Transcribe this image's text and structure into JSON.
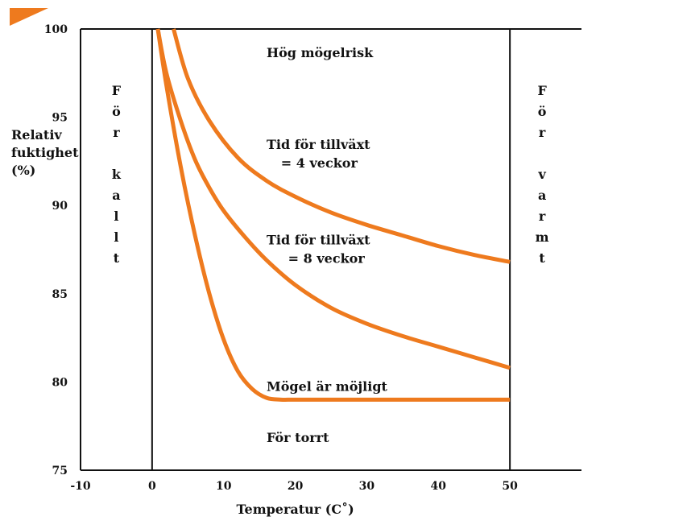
{
  "colors": {
    "curve": "#EE7A1E",
    "axis": "#111111",
    "background": "#ffffff",
    "corner_mark": "#EE7A1E"
  },
  "chart_data": {
    "type": "line",
    "xlabel": "Temperatur (C˚)",
    "ylabel": [
      "Relativ",
      "fuktighet",
      "(%)"
    ],
    "xlim": [
      -10,
      60
    ],
    "ylim": [
      75,
      100
    ],
    "x_ticks": [
      -10,
      0,
      10,
      20,
      30,
      40,
      50
    ],
    "y_ticks": [
      75,
      80,
      85,
      90,
      95,
      100
    ],
    "vertical_lines_at": [
      0,
      50
    ],
    "grid": false,
    "series": [
      {
        "x": [
          3,
          5,
          8,
          12,
          16,
          20,
          25,
          30,
          35,
          40,
          45,
          50
        ],
        "y": [
          100,
          97.2,
          94.8,
          92.7,
          91.4,
          90.5,
          89.6,
          88.9,
          88.3,
          87.7,
          87.2,
          86.8
        ]
      },
      {
        "x": [
          0.8,
          2,
          4,
          6,
          8,
          10,
          13,
          16,
          20,
          25,
          30,
          35,
          40,
          45,
          50
        ],
        "y": [
          100,
          97.5,
          94.8,
          92.6,
          91.0,
          89.7,
          88.2,
          86.9,
          85.5,
          84.2,
          83.3,
          82.6,
          82.0,
          81.4,
          80.8
        ]
      },
      {
        "x": [
          0.8,
          2,
          4,
          6,
          8,
          10,
          12,
          14,
          16,
          18,
          20,
          25,
          30,
          35,
          40,
          45,
          50
        ],
        "y": [
          100,
          96.8,
          92.2,
          88.3,
          85.0,
          82.4,
          80.6,
          79.6,
          79.1,
          79.0,
          79.0,
          79.0,
          79.0,
          79.0,
          79.0,
          79.0,
          79.0
        ]
      }
    ],
    "annotations": [
      {
        "id": "hog-mogelrisk",
        "lines": [
          "Hög mögelrisk"
        ],
        "x": 16,
        "y": 98.4
      },
      {
        "id": "tid-4-veckor",
        "lines": [
          "Tid för tillväxt",
          "= 4 veckor"
        ],
        "x": 16,
        "y": 93.2,
        "line2_x": 18
      },
      {
        "id": "tid-8-veckor",
        "lines": [
          "Tid för tillväxt",
          "= 8 veckor"
        ],
        "x": 16,
        "y": 87.8,
        "line2_x": 19
      },
      {
        "id": "mogel-ar-mojligt",
        "lines": [
          "Mögel är möjligt"
        ],
        "x": 16,
        "y": 79.5
      },
      {
        "id": "for-torrt",
        "lines": [
          "För torrt"
        ],
        "x": 16,
        "y": 76.6
      }
    ],
    "side_labels": [
      {
        "id": "for-kallt",
        "letters": [
          "F",
          "ö",
          "r",
          "",
          "k",
          "a",
          "l",
          "l",
          "t"
        ],
        "x": -5
      },
      {
        "id": "for-varmt",
        "letters": [
          "F",
          "ö",
          "r",
          "",
          "v",
          "a",
          "r",
          "m",
          "t"
        ],
        "x": 54.5
      }
    ]
  }
}
